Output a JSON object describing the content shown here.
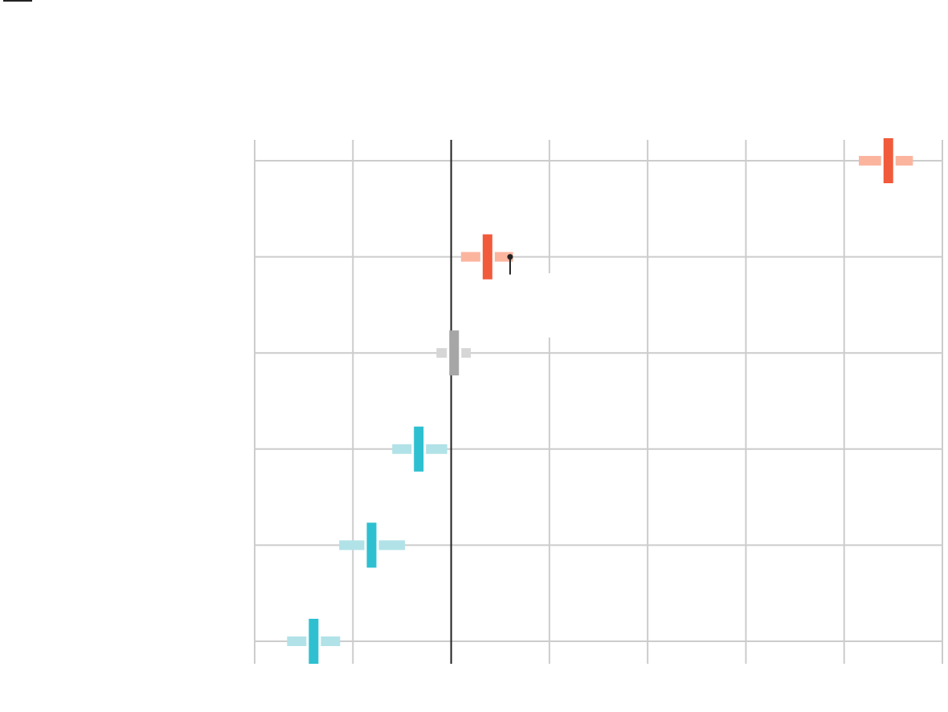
{
  "chart_data": {
    "type": "scatter",
    "title": "",
    "xlabel": "",
    "ylabel": "",
    "grid": true,
    "xlim": [
      -2,
      5
    ],
    "x_gridlines": [
      -2,
      -1,
      0,
      1,
      2,
      3,
      4,
      5
    ],
    "reference_line": 0,
    "rows": [
      {
        "estimate": 4.45,
        "ci_low": 4.15,
        "ci_high": 4.7,
        "direction": "positive"
      },
      {
        "estimate": 0.37,
        "ci_low": 0.1,
        "ci_high": 0.63,
        "direction": "positive"
      },
      {
        "estimate": 0.03,
        "ci_low": -0.15,
        "ci_high": 0.2,
        "direction": "neutral"
      },
      {
        "estimate": -0.33,
        "ci_low": -0.6,
        "ci_high": -0.04,
        "direction": "negative"
      },
      {
        "estimate": -0.81,
        "ci_low": -1.14,
        "ci_high": -0.47,
        "direction": "negative"
      },
      {
        "estimate": -1.4,
        "ci_low": -1.67,
        "ci_high": -1.13,
        "direction": "negative"
      }
    ],
    "annotation_marker": {
      "row": 1,
      "x": 0.6
    }
  },
  "colors": {
    "positive": "#f15a3b",
    "positive_light": "#fbb59f",
    "neutral": "#a6a6a6",
    "neutral_light": "#d6d6d6",
    "negative": "#2ec0d0",
    "negative_light": "#b1e2e8",
    "grid": "#cccccc",
    "reference": "#222222"
  }
}
